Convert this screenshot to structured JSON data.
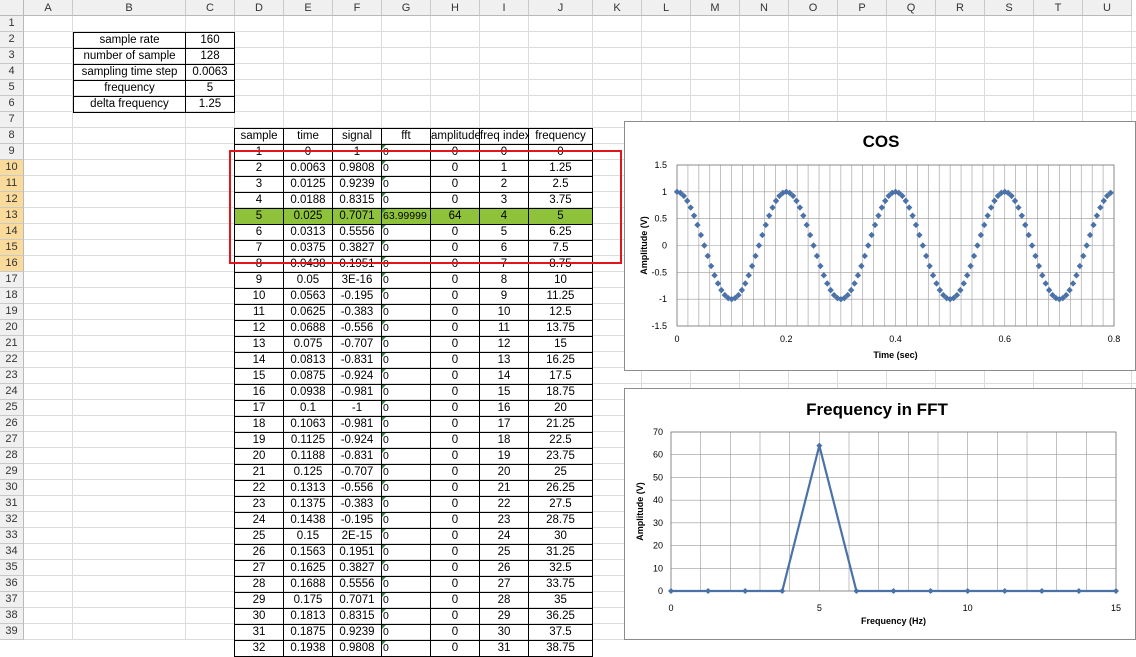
{
  "columns": [
    "A",
    "B",
    "C",
    "D",
    "E",
    "F",
    "G",
    "H",
    "I",
    "J",
    "K",
    "L",
    "M",
    "N",
    "O",
    "P",
    "Q",
    "R",
    "S",
    "T",
    "U"
  ],
  "params": [
    {
      "label": "sample rate",
      "value": "160"
    },
    {
      "label": "number of sample",
      "value": "128"
    },
    {
      "label": "sampling time step",
      "value": "0.0063"
    },
    {
      "label": "frequency",
      "value": "5"
    },
    {
      "label": "delta frequency",
      "value": "1.25"
    }
  ],
  "table": {
    "headers": [
      "sample",
      "time",
      "signal",
      "fft",
      "amplitude",
      "freq index",
      "frequency"
    ],
    "rows": [
      [
        "1",
        "0",
        "1",
        "0",
        "0",
        "0",
        "0"
      ],
      [
        "2",
        "0.0063",
        "0.9808",
        "0",
        "0",
        "1",
        "1.25"
      ],
      [
        "3",
        "0.0125",
        "0.9239",
        "0",
        "0",
        "2",
        "2.5"
      ],
      [
        "4",
        "0.0188",
        "0.8315",
        "0",
        "0",
        "3",
        "3.75"
      ],
      [
        "5",
        "0.025",
        "0.7071",
        "63.99999",
        "64",
        "4",
        "5"
      ],
      [
        "6",
        "0.0313",
        "0.5556",
        "0",
        "0",
        "5",
        "6.25"
      ],
      [
        "7",
        "0.0375",
        "0.3827",
        "0",
        "0",
        "6",
        "7.5"
      ],
      [
        "8",
        "0.0438",
        "0.1951",
        "0",
        "0",
        "7",
        "8.75"
      ],
      [
        "9",
        "0.05",
        "3E-16",
        "0",
        "0",
        "8",
        "10"
      ],
      [
        "10",
        "0.0563",
        "-0.195",
        "0",
        "0",
        "9",
        "11.25"
      ],
      [
        "11",
        "0.0625",
        "-0.383",
        "0",
        "0",
        "10",
        "12.5"
      ],
      [
        "12",
        "0.0688",
        "-0.556",
        "0",
        "0",
        "11",
        "13.75"
      ],
      [
        "13",
        "0.075",
        "-0.707",
        "0",
        "0",
        "12",
        "15"
      ],
      [
        "14",
        "0.0813",
        "-0.831",
        "0",
        "0",
        "13",
        "16.25"
      ],
      [
        "15",
        "0.0875",
        "-0.924",
        "0",
        "0",
        "14",
        "17.5"
      ],
      [
        "16",
        "0.0938",
        "-0.981",
        "0",
        "0",
        "15",
        "18.75"
      ],
      [
        "17",
        "0.1",
        "-1",
        "0",
        "0",
        "16",
        "20"
      ],
      [
        "18",
        "0.1063",
        "-0.981",
        "0",
        "0",
        "17",
        "21.25"
      ],
      [
        "19",
        "0.1125",
        "-0.924",
        "0",
        "0",
        "18",
        "22.5"
      ],
      [
        "20",
        "0.1188",
        "-0.831",
        "0",
        "0",
        "19",
        "23.75"
      ],
      [
        "21",
        "0.125",
        "-0.707",
        "0",
        "0",
        "20",
        "25"
      ],
      [
        "22",
        "0.1313",
        "-0.556",
        "0",
        "0",
        "21",
        "26.25"
      ],
      [
        "23",
        "0.1375",
        "-0.383",
        "0",
        "0",
        "22",
        "27.5"
      ],
      [
        "24",
        "0.1438",
        "-0.195",
        "0",
        "0",
        "23",
        "28.75"
      ],
      [
        "25",
        "0.15",
        "2E-15",
        "0",
        "0",
        "24",
        "30"
      ],
      [
        "26",
        "0.1563",
        "0.1951",
        "0",
        "0",
        "25",
        "31.25"
      ],
      [
        "27",
        "0.1625",
        "0.3827",
        "0",
        "0",
        "26",
        "32.5"
      ],
      [
        "28",
        "0.1688",
        "0.5556",
        "0",
        "0",
        "27",
        "33.75"
      ],
      [
        "29",
        "0.175",
        "0.7071",
        "0",
        "0",
        "28",
        "35"
      ],
      [
        "30",
        "0.1813",
        "0.8315",
        "0",
        "0",
        "29",
        "36.25"
      ],
      [
        "31",
        "0.1875",
        "0.9239",
        "0",
        "0",
        "30",
        "37.5"
      ],
      [
        "32",
        "0.1938",
        "0.9808",
        "0",
        "0",
        "31",
        "38.75"
      ]
    ],
    "highlight_row_index": 4,
    "highlight_color": "#8fc23b",
    "selection_box_color": "#e0161b"
  },
  "selected_rows": [
    "10",
    "11",
    "12",
    "13",
    "14",
    "15",
    "16"
  ],
  "charts": {
    "cos": {
      "title": "COS",
      "xlabel": "Time (sec)",
      "ylabel": "Amplitude (V)",
      "xticks": [
        "0",
        "0.2",
        "0.4",
        "0.6",
        "0.8"
      ],
      "yticks": [
        "1.5",
        "1",
        "0.5",
        "0",
        "-0.5",
        "-1",
        "-1.5"
      ],
      "marker_color": "#4a72a8"
    },
    "fft": {
      "title": "Frequency in FFT",
      "xlabel": "Frequency (Hz)",
      "ylabel": "Amplitude (V)",
      "xticks": [
        "0",
        "5",
        "10",
        "15"
      ],
      "yticks": [
        "70",
        "60",
        "50",
        "40",
        "30",
        "20",
        "10",
        "0"
      ],
      "line_color": "#4a72a8"
    }
  },
  "chart_data": [
    {
      "type": "scatter",
      "title": "COS",
      "xlabel": "Time (sec)",
      "ylabel": "Amplitude (V)",
      "xlim": [
        0,
        0.8
      ],
      "ylim": [
        -1.5,
        1.5
      ],
      "grid": true,
      "function": "cos(2*pi*5*t)",
      "x_start": 0,
      "x_step": 0.00625,
      "n_points": 128
    },
    {
      "type": "line",
      "title": "Frequency in FFT",
      "xlabel": "Frequency (Hz)",
      "ylabel": "Amplitude (V)",
      "xlim": [
        0,
        15
      ],
      "ylim": [
        0,
        70
      ],
      "grid": true,
      "x": [
        0,
        1.25,
        2.5,
        3.75,
        5,
        6.25,
        7.5,
        8.75,
        10,
        11.25,
        12.5,
        13.75,
        15
      ],
      "y": [
        0,
        0,
        0,
        0,
        64,
        0,
        0,
        0,
        0,
        0,
        0,
        0,
        0
      ]
    }
  ]
}
